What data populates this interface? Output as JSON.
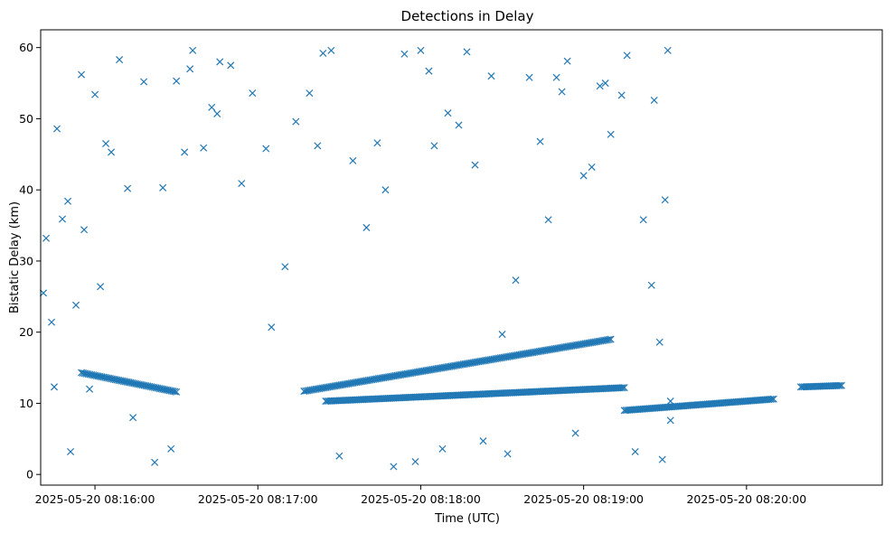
{
  "chart_data": {
    "type": "scatter",
    "title": "Detections in Delay",
    "xlabel": "Time (UTC)",
    "ylabel": "Bistatic Delay (km)",
    "x_ticks": [
      "2025-05-20 08:16:00",
      "2025-05-20 08:17:00",
      "2025-05-20 08:18:00",
      "2025-05-20 08:19:00",
      "2025-05-20 08:20:00"
    ],
    "y_ticks": [
      0,
      10,
      20,
      30,
      40,
      50,
      60
    ],
    "xlim": [
      "2025-05-20 08:15:40",
      "2025-05-20 08:20:50"
    ],
    "ylim": [
      -1.5,
      62.5
    ],
    "grid": false,
    "marker": "x",
    "series_color": "#1f77b4",
    "tracks": [
      {
        "description": "descending track",
        "x_start": "2025-05-20 08:15:55",
        "x_end": "2025-05-20 08:16:30",
        "y_start": 14.3,
        "y_end": 11.6
      },
      {
        "description": "rising track",
        "x_start": "2025-05-20 08:17:17",
        "x_end": "2025-05-20 08:19:10",
        "y_start": 11.7,
        "y_end": 19.0
      },
      {
        "description": "flat track",
        "x_start": "2025-05-20 08:17:25",
        "x_end": "2025-05-20 08:19:15",
        "y_start": 10.3,
        "y_end": 12.2
      },
      {
        "description": "flat track",
        "x_start": "2025-05-20 08:19:15",
        "x_end": "2025-05-20 08:20:10",
        "y_start": 9.0,
        "y_end": 10.6
      },
      {
        "description": "flat track",
        "x_start": "2025-05-20 08:20:20",
        "x_end": "2025-05-20 08:20:35",
        "y_start": 12.3,
        "y_end": 12.5
      }
    ],
    "scatter_points": [
      [
        "2025-05-20 08:15:41",
        25.5
      ],
      [
        "2025-05-20 08:15:42",
        33.2
      ],
      [
        "2025-05-20 08:15:44",
        21.4
      ],
      [
        "2025-05-20 08:15:45",
        12.3
      ],
      [
        "2025-05-20 08:15:46",
        48.6
      ],
      [
        "2025-05-20 08:15:48",
        35.9
      ],
      [
        "2025-05-20 08:15:50",
        38.4
      ],
      [
        "2025-05-20 08:15:51",
        3.2
      ],
      [
        "2025-05-20 08:15:53",
        23.8
      ],
      [
        "2025-05-20 08:15:55",
        56.2
      ],
      [
        "2025-05-20 08:15:56",
        34.4
      ],
      [
        "2025-05-20 08:15:58",
        12.0
      ],
      [
        "2025-05-20 08:16:00",
        53.4
      ],
      [
        "2025-05-20 08:16:02",
        26.4
      ],
      [
        "2025-05-20 08:16:04",
        46.5
      ],
      [
        "2025-05-20 08:16:06",
        45.3
      ],
      [
        "2025-05-20 08:16:09",
        58.3
      ],
      [
        "2025-05-20 08:16:12",
        40.2
      ],
      [
        "2025-05-20 08:16:14",
        8.0
      ],
      [
        "2025-05-20 08:16:18",
        55.2
      ],
      [
        "2025-05-20 08:16:22",
        1.7
      ],
      [
        "2025-05-20 08:16:25",
        40.3
      ],
      [
        "2025-05-20 08:16:28",
        3.6
      ],
      [
        "2025-05-20 08:16:30",
        55.3
      ],
      [
        "2025-05-20 08:16:33",
        45.3
      ],
      [
        "2025-05-20 08:16:35",
        57.0
      ],
      [
        "2025-05-20 08:16:36",
        59.6
      ],
      [
        "2025-05-20 08:16:40",
        45.9
      ],
      [
        "2025-05-20 08:16:43",
        51.6
      ],
      [
        "2025-05-20 08:16:45",
        50.7
      ],
      [
        "2025-05-20 08:16:46",
        58.0
      ],
      [
        "2025-05-20 08:16:50",
        57.5
      ],
      [
        "2025-05-20 08:16:54",
        40.9
      ],
      [
        "2025-05-20 08:16:58",
        53.6
      ],
      [
        "2025-05-20 08:17:03",
        45.8
      ],
      [
        "2025-05-20 08:17:05",
        20.7
      ],
      [
        "2025-05-20 08:17:10",
        29.2
      ],
      [
        "2025-05-20 08:17:14",
        49.6
      ],
      [
        "2025-05-20 08:17:19",
        53.6
      ],
      [
        "2025-05-20 08:17:22",
        46.2
      ],
      [
        "2025-05-20 08:17:24",
        59.2
      ],
      [
        "2025-05-20 08:17:27",
        59.6
      ],
      [
        "2025-05-20 08:17:30",
        2.6
      ],
      [
        "2025-05-20 08:17:35",
        44.1
      ],
      [
        "2025-05-20 08:17:40",
        34.7
      ],
      [
        "2025-05-20 08:17:44",
        46.6
      ],
      [
        "2025-05-20 08:17:47",
        40.0
      ],
      [
        "2025-05-20 08:17:50",
        1.1
      ],
      [
        "2025-05-20 08:17:54",
        59.1
      ],
      [
        "2025-05-20 08:17:58",
        1.8
      ],
      [
        "2025-05-20 08:18:00",
        59.6
      ],
      [
        "2025-05-20 08:18:03",
        56.7
      ],
      [
        "2025-05-20 08:18:05",
        46.2
      ],
      [
        "2025-05-20 08:18:08",
        3.6
      ],
      [
        "2025-05-20 08:18:10",
        50.8
      ],
      [
        "2025-05-20 08:18:14",
        49.1
      ],
      [
        "2025-05-20 08:18:17",
        59.4
      ],
      [
        "2025-05-20 08:18:20",
        43.5
      ],
      [
        "2025-05-20 08:18:23",
        4.7
      ],
      [
        "2025-05-20 08:18:26",
        56.0
      ],
      [
        "2025-05-20 08:18:30",
        19.7
      ],
      [
        "2025-05-20 08:18:32",
        2.9
      ],
      [
        "2025-05-20 08:18:35",
        27.3
      ],
      [
        "2025-05-20 08:18:40",
        55.8
      ],
      [
        "2025-05-20 08:18:44",
        46.8
      ],
      [
        "2025-05-20 08:18:47",
        35.8
      ],
      [
        "2025-05-20 08:18:50",
        55.8
      ],
      [
        "2025-05-20 08:18:52",
        53.8
      ],
      [
        "2025-05-20 08:18:54",
        58.1
      ],
      [
        "2025-05-20 08:18:57",
        5.8
      ],
      [
        "2025-05-20 08:19:00",
        42.0
      ],
      [
        "2025-05-20 08:19:03",
        43.2
      ],
      [
        "2025-05-20 08:19:06",
        54.6
      ],
      [
        "2025-05-20 08:19:08",
        55.0
      ],
      [
        "2025-05-20 08:19:10",
        47.8
      ],
      [
        "2025-05-20 08:19:14",
        53.3
      ],
      [
        "2025-05-20 08:19:16",
        58.9
      ],
      [
        "2025-05-20 08:19:19",
        3.2
      ],
      [
        "2025-05-20 08:19:22",
        35.8
      ],
      [
        "2025-05-20 08:19:25",
        26.6
      ],
      [
        "2025-05-20 08:19:26",
        52.6
      ],
      [
        "2025-05-20 08:19:28",
        18.6
      ],
      [
        "2025-05-20 08:19:29",
        2.1
      ],
      [
        "2025-05-20 08:19:30",
        38.6
      ],
      [
        "2025-05-20 08:19:31",
        59.6
      ],
      [
        "2025-05-20 08:19:32",
        10.3
      ],
      [
        "2025-05-20 08:19:32",
        7.6
      ]
    ]
  }
}
